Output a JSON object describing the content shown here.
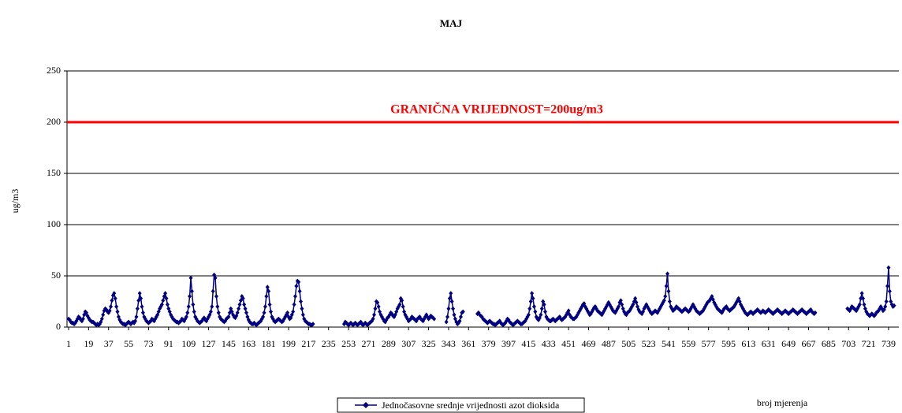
{
  "chart_data": {
    "type": "line",
    "title": "MAJ",
    "y_label": "ug/m3",
    "x_label": "broj mjerenja",
    "ylim": [
      0,
      250
    ],
    "yticks": [
      0,
      50,
      100,
      150,
      200,
      250
    ],
    "grid": true,
    "xlim": [
      1,
      744
    ],
    "xticks": [
      1,
      19,
      37,
      55,
      73,
      91,
      109,
      127,
      145,
      163,
      181,
      199,
      217,
      235,
      253,
      271,
      289,
      307,
      325,
      343,
      361,
      379,
      397,
      415,
      433,
      451,
      469,
      487,
      505,
      523,
      541,
      559,
      577,
      595,
      613,
      631,
      649,
      667,
      685,
      703,
      721,
      739
    ],
    "limit": {
      "value": 200,
      "label": "GRANIČNA VRIJEDNOST=200ug/m3",
      "color": "#ff0000"
    },
    "x": [
      1,
      2,
      3,
      4,
      5,
      6,
      7,
      8,
      9,
      10,
      11,
      12,
      13,
      14,
      15,
      16,
      17,
      18,
      19,
      20,
      21,
      22,
      23,
      24,
      25,
      26,
      27,
      28,
      29,
      30,
      31,
      32,
      33,
      34,
      35,
      36,
      37,
      38,
      39,
      40,
      41,
      42,
      43,
      44,
      45,
      46,
      47,
      48,
      49,
      50,
      51,
      52,
      53,
      54,
      55,
      56,
      57,
      58,
      59,
      60,
      61,
      62,
      63,
      64,
      65,
      66,
      67,
      68,
      69,
      70,
      71,
      72,
      73,
      74,
      75,
      76,
      77,
      78,
      79,
      80,
      81,
      82,
      83,
      84,
      85,
      86,
      87,
      88,
      89,
      90,
      91,
      92,
      93,
      94,
      95,
      96,
      97,
      98,
      99,
      100,
      101,
      102,
      103,
      104,
      105,
      106,
      107,
      108,
      109,
      110,
      111,
      112,
      113,
      114,
      115,
      116,
      117,
      118,
      119,
      120,
      121,
      122,
      123,
      124,
      125,
      126,
      127,
      128,
      129,
      130,
      131,
      132,
      133,
      134,
      135,
      136,
      137,
      138,
      139,
      140,
      141,
      142,
      143,
      144,
      145,
      146,
      147,
      148,
      149,
      150,
      151,
      152,
      153,
      154,
      155,
      156,
      157,
      158,
      159,
      160,
      161,
      162,
      163,
      164,
      165,
      166,
      167,
      168,
      169,
      170,
      171,
      172,
      173,
      174,
      175,
      176,
      177,
      178,
      179,
      180,
      181,
      182,
      183,
      184,
      185,
      186,
      187,
      188,
      189,
      190,
      191,
      192,
      193,
      194,
      195,
      196,
      197,
      198,
      199,
      200,
      201,
      202,
      203,
      204,
      205,
      206,
      207,
      208,
      209,
      210,
      211,
      212,
      213,
      214,
      215,
      216,
      217,
      218,
      219,
      220,
      221,
      222,
      223,
      224,
      225,
      226,
      227,
      228,
      229,
      230,
      231,
      232,
      233,
      234,
      235,
      236,
      237,
      238,
      239,
      240,
      241,
      242,
      243,
      244,
      245,
      246,
      247,
      248,
      249,
      250,
      251,
      252,
      253,
      254,
      255,
      256,
      257,
      258,
      259,
      260,
      261,
      262,
      263,
      264,
      265,
      266,
      267,
      268,
      269,
      270,
      271,
      272,
      273,
      274,
      275,
      276,
      277,
      278,
      279,
      280,
      281,
      282,
      283,
      284,
      285,
      286,
      287,
      288,
      289,
      290,
      291,
      292,
      293,
      294,
      295,
      296,
      297,
      298,
      299,
      300,
      301,
      302,
      303,
      304,
      305,
      306,
      307,
      308,
      309,
      310,
      311,
      312,
      313,
      314,
      315,
      316,
      317,
      318,
      319,
      320,
      321,
      322,
      323,
      324,
      325,
      326,
      327,
      328,
      329,
      330,
      331,
      332,
      333,
      334,
      335,
      336,
      337,
      338,
      339,
      340,
      341,
      342,
      343,
      344,
      345,
      346,
      347,
      348,
      349,
      350,
      351,
      352,
      353,
      354,
      355,
      356,
      357,
      358,
      359,
      360,
      361,
      362,
      363,
      364,
      365,
      366,
      367,
      368,
      369,
      370,
      371,
      372,
      373,
      374,
      375,
      376,
      377,
      378,
      379,
      380,
      381,
      382,
      383,
      384,
      385,
      386,
      387,
      388,
      389,
      390,
      391,
      392,
      393,
      394,
      395,
      396,
      397,
      398,
      399,
      400,
      401,
      402,
      403,
      404,
      405,
      406,
      407,
      408,
      409,
      410,
      411,
      412,
      413,
      414,
      415,
      416,
      417,
      418,
      419,
      420,
      421,
      422,
      423,
      424,
      425,
      426,
      427,
      428,
      429,
      430,
      431,
      432,
      433,
      434,
      435,
      436,
      437,
      438,
      439,
      440,
      441,
      442,
      443,
      444,
      445,
      446,
      447,
      448,
      449,
      450,
      451,
      452,
      453,
      454,
      455,
      456,
      457,
      458,
      459,
      460,
      461,
      462,
      463,
      464,
      465,
      466,
      467,
      468,
      469,
      470,
      471,
      472,
      473,
      474,
      475,
      476,
      477,
      478,
      479,
      480,
      481,
      482,
      483,
      484,
      485,
      486,
      487,
      488,
      489,
      490,
      491,
      492,
      493,
      494,
      495,
      496,
      497,
      498,
      499,
      500,
      501,
      502,
      503,
      504,
      505,
      506,
      507,
      508,
      509,
      510,
      511,
      512,
      513,
      514,
      515,
      516,
      517,
      518,
      519,
      520,
      521,
      522,
      523,
      524,
      525,
      526,
      527,
      528,
      529,
      530,
      531,
      532,
      533,
      534,
      535,
      536,
      537,
      538,
      539,
      540,
      541,
      542,
      543,
      544,
      545,
      546,
      547,
      548,
      549,
      550,
      551,
      552,
      553,
      554,
      555,
      556,
      557,
      558,
      559,
      560,
      561,
      562,
      563,
      564,
      565,
      566,
      567,
      568,
      569,
      570,
      571,
      572,
      573,
      574,
      575,
      576,
      577,
      578,
      579,
      580,
      581,
      582,
      583,
      584,
      585,
      586,
      587,
      588,
      589,
      590,
      591,
      592,
      593,
      594,
      595,
      596,
      597,
      598,
      599,
      600,
      601,
      602,
      603,
      604,
      605,
      606,
      607,
      608,
      609,
      610,
      611,
      612,
      613,
      614,
      615,
      616,
      617,
      618,
      619,
      620,
      621,
      622,
      623,
      624,
      625,
      626,
      627,
      628,
      629,
      630,
      631,
      632,
      633,
      634,
      635,
      636,
      637,
      638,
      639,
      640,
      641,
      642,
      643,
      644,
      645,
      646,
      647,
      648,
      649,
      650,
      651,
      652,
      653,
      654,
      655,
      656,
      657,
      658,
      659,
      660,
      661,
      662,
      663,
      664,
      665,
      666,
      667,
      668,
      669,
      670,
      671,
      672,
      673,
      674,
      675,
      676,
      677,
      678,
      679,
      680,
      681,
      682,
      683,
      684,
      685,
      686,
      687,
      688,
      689,
      690,
      691,
      692,
      693,
      694,
      695,
      696,
      697,
      698,
      699,
      700,
      701,
      702,
      703,
      704,
      705,
      706,
      707,
      708,
      709,
      710,
      711,
      712,
      713,
      714,
      715,
      716,
      717,
      718,
      719,
      720,
      721,
      722,
      723,
      724,
      725,
      726,
      727,
      728,
      729,
      730,
      731,
      732,
      733,
      734,
      735,
      736,
      737,
      738,
      739,
      740,
      741,
      742,
      743,
      744
    ],
    "series": [
      {
        "name": "Jednočasovne srednje vrijednosti azot dioksida",
        "color": "#000080",
        "values": [
          8,
          7,
          5,
          4,
          4,
          3,
          4,
          6,
          8,
          10,
          9,
          7,
          6,
          8,
          12,
          15,
          14,
          11,
          9,
          7,
          6,
          5,
          5,
          4,
          3,
          2,
          3,
          2,
          3,
          5,
          8,
          12,
          16,
          18,
          17,
          15,
          14,
          16,
          20,
          26,
          31,
          33,
          28,
          20,
          15,
          10,
          7,
          5,
          4,
          3,
          3,
          2,
          3,
          4,
          5,
          4,
          3,
          4,
          5,
          4,
          6,
          10,
          18,
          26,
          33,
          28,
          20,
          14,
          10,
          8,
          6,
          5,
          4,
          5,
          6,
          8,
          7,
          6,
          8,
          10,
          12,
          15,
          18,
          20,
          22,
          26,
          30,
          33,
          28,
          22,
          18,
          15,
          12,
          10,
          8,
          7,
          6,
          5,
          5,
          4,
          5,
          6,
          8,
          7,
          6,
          8,
          10,
          14,
          20,
          30,
          48,
          35,
          22,
          15,
          10,
          8,
          6,
          5,
          4,
          5,
          6,
          8,
          9,
          7,
          6,
          8,
          10,
          12,
          15,
          20,
          35,
          51,
          48,
          30,
          20,
          14,
          10,
          8,
          7,
          6,
          5,
          6,
          8,
          9,
          10,
          14,
          18,
          15,
          12,
          10,
          9,
          11,
          14,
          18,
          22,
          26,
          30,
          28,
          22,
          18,
          14,
          10,
          7,
          5,
          4,
          3,
          3,
          4,
          3,
          2,
          3,
          4,
          5,
          6,
          8,
          10,
          14,
          20,
          30,
          39,
          35,
          22,
          15,
          10,
          8,
          6,
          5,
          6,
          7,
          8,
          7,
          6,
          5,
          6,
          8,
          10,
          12,
          14,
          10,
          8,
          9,
          12,
          15,
          22,
          30,
          40,
          45,
          44,
          35,
          25,
          18,
          12,
          8,
          6,
          5,
          4,
          3,
          3,
          2,
          2,
          3,
          null,
          null,
          null,
          null,
          null,
          null,
          null,
          null,
          null,
          null,
          null,
          null,
          null,
          null,
          null,
          null,
          null,
          null,
          null,
          null,
          null,
          null,
          null,
          null,
          null,
          null,
          null,
          3,
          5,
          4,
          3,
          2,
          3,
          4,
          3,
          2,
          3,
          4,
          3,
          2,
          3,
          4,
          5,
          3,
          2,
          3,
          4,
          3,
          2,
          3,
          4,
          5,
          6,
          8,
          12,
          18,
          25,
          24,
          20,
          15,
          12,
          10,
          8,
          6,
          5,
          7,
          9,
          10,
          12,
          14,
          13,
          11,
          10,
          12,
          15,
          18,
          20,
          22,
          28,
          26,
          20,
          15,
          12,
          10,
          8,
          6,
          7,
          8,
          10,
          9,
          8,
          7,
          6,
          8,
          9,
          10,
          8,
          7,
          6,
          8,
          10,
          12,
          10,
          8,
          9,
          11,
          10,
          9,
          8,
          null,
          null,
          null,
          null,
          null,
          null,
          null,
          null,
          null,
          null,
          5,
          10,
          18,
          28,
          33,
          25,
          18,
          12,
          8,
          5,
          3,
          4,
          6,
          10,
          14,
          15,
          null,
          null,
          null,
          null,
          null,
          null,
          null,
          null,
          null,
          null,
          null,
          null,
          13,
          14,
          12,
          11,
          10,
          8,
          7,
          6,
          5,
          4,
          5,
          6,
          5,
          4,
          3,
          3,
          2,
          3,
          4,
          5,
          6,
          4,
          3,
          2,
          3,
          4,
          6,
          8,
          7,
          5,
          4,
          3,
          2,
          3,
          4,
          5,
          6,
          5,
          4,
          3,
          3,
          4,
          5,
          6,
          8,
          10,
          12,
          18,
          25,
          33,
          28,
          20,
          15,
          10,
          8,
          7,
          9,
          12,
          18,
          25,
          22,
          15,
          10,
          8,
          7,
          6,
          6,
          7,
          8,
          7,
          6,
          7,
          8,
          9,
          10,
          8,
          7,
          8,
          9,
          10,
          12,
          14,
          16,
          12,
          10,
          9,
          8,
          8,
          9,
          10,
          12,
          14,
          16,
          18,
          20,
          22,
          23,
          20,
          18,
          16,
          14,
          12,
          13,
          15,
          17,
          19,
          20,
          18,
          16,
          15,
          14,
          13,
          12,
          14,
          16,
          18,
          20,
          22,
          24,
          22,
          20,
          18,
          16,
          15,
          14,
          16,
          18,
          20,
          24,
          26,
          22,
          18,
          15,
          13,
          12,
          14,
          15,
          16,
          18,
          20,
          22,
          25,
          28,
          24,
          20,
          17,
          15,
          14,
          13,
          15,
          18,
          20,
          22,
          20,
          18,
          16,
          14,
          13,
          14,
          15,
          16,
          15,
          14,
          16,
          18,
          20,
          22,
          24,
          26,
          30,
          40,
          52,
          35,
          25,
          20,
          18,
          16,
          17,
          18,
          20,
          19,
          18,
          17,
          16,
          15,
          16,
          17,
          18,
          17,
          16,
          15,
          16,
          18,
          20,
          22,
          20,
          18,
          16,
          15,
          14,
          13,
          14,
          15,
          16,
          18,
          20,
          22,
          24,
          25,
          26,
          28,
          30,
          27,
          24,
          22,
          20,
          18,
          17,
          16,
          15,
          14,
          16,
          18,
          19,
          20,
          18,
          17,
          16,
          17,
          18,
          19,
          20,
          22,
          24,
          26,
          28,
          25,
          22,
          20,
          18,
          16,
          14,
          13,
          12,
          13,
          14,
          15,
          14,
          13,
          14,
          15,
          16,
          17,
          16,
          15,
          14,
          15,
          16,
          15,
          14,
          15,
          16,
          17,
          16,
          15,
          14,
          13,
          14,
          15,
          16,
          17,
          16,
          15,
          14,
          13,
          14,
          15,
          16,
          15,
          14,
          13,
          14,
          15,
          16,
          17,
          16,
          15,
          14,
          13,
          14,
          15,
          16,
          17,
          16,
          15,
          14,
          13,
          14,
          15,
          16,
          17,
          15,
          14,
          13,
          14,
          null,
          null,
          null,
          null,
          null,
          null,
          null,
          null,
          null,
          null,
          null,
          null,
          null,
          null,
          null,
          null,
          null,
          null,
          null,
          null,
          null,
          null,
          null,
          null,
          null,
          null,
          null,
          null,
          18,
          17,
          16,
          18,
          20,
          19,
          18,
          17,
          16,
          18,
          20,
          22,
          28,
          33,
          28,
          22,
          18,
          15,
          13,
          12,
          11,
          12,
          13,
          12,
          11,
          12,
          14,
          15,
          16,
          18,
          20,
          18,
          16,
          17,
          20,
          25,
          40,
          58,
          35,
          25,
          22,
          20,
          21
        ]
      }
    ]
  }
}
